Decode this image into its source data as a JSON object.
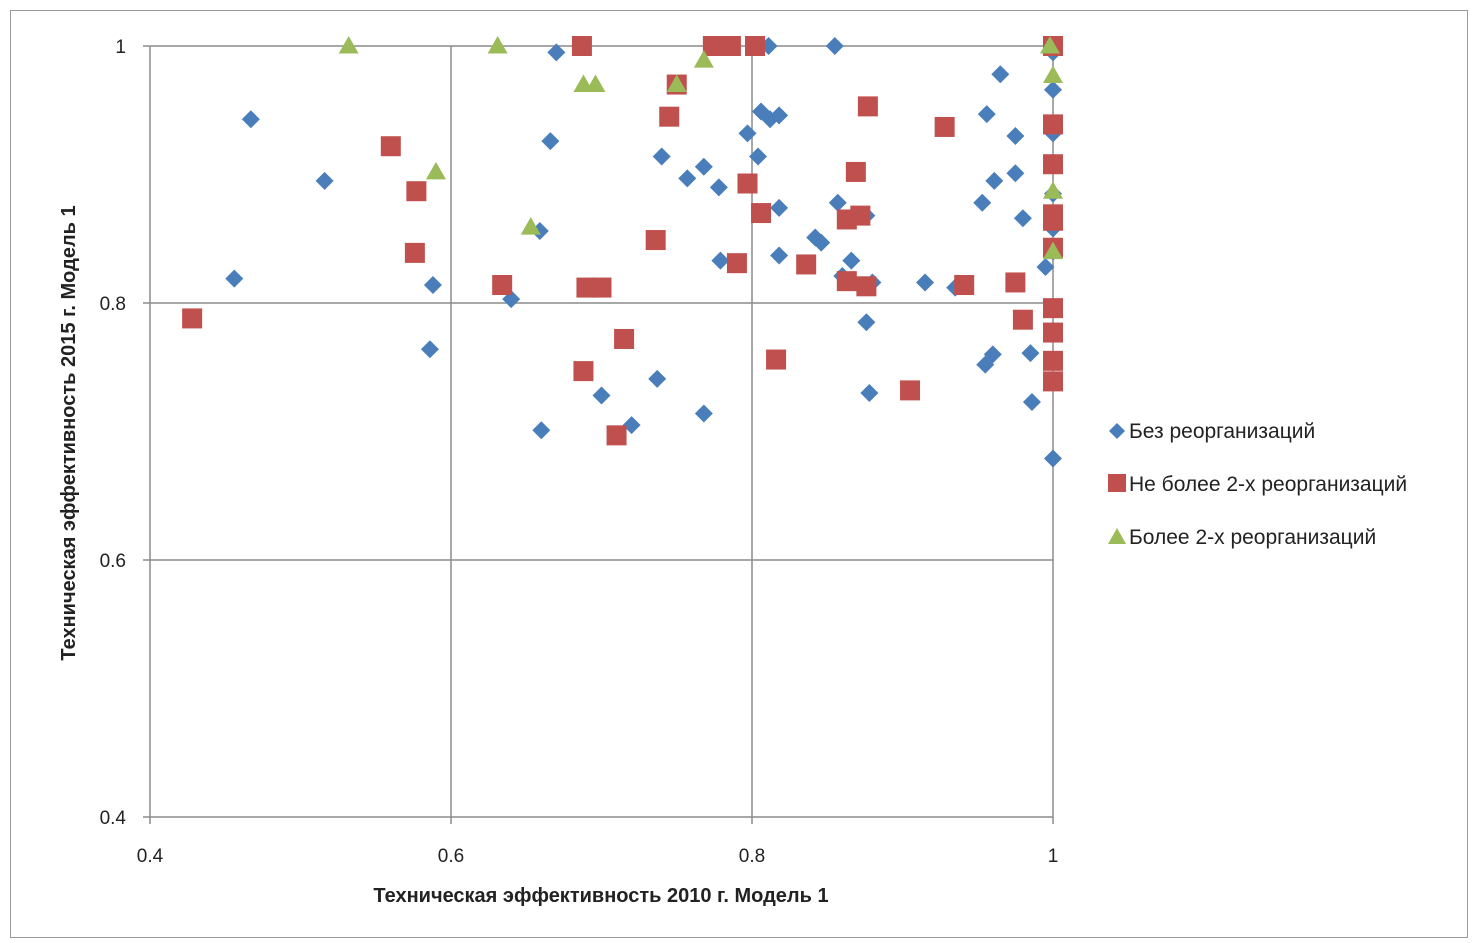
{
  "chart_data": {
    "type": "scatter",
    "xlabel": "Техническая эффективность 2010 г. Модель 1",
    "ylabel": "Техническая эффективность 2015 г. Модель 1",
    "xlim": [
      0.4,
      1.0
    ],
    "ylim": [
      0.4,
      1.0
    ],
    "x_ticks": [
      "0.4",
      "0.6",
      "0.8",
      "1"
    ],
    "y_ticks": [
      "0.4",
      "0.6",
      "0.8",
      "1"
    ],
    "grid": true,
    "legend_position": "right",
    "series": [
      {
        "name": "Без реорганизаций",
        "marker": "diamond",
        "color": "#4a7ebb",
        "points": [
          [
            0.467,
            0.943
          ],
          [
            0.516,
            0.895
          ],
          [
            0.456,
            0.819
          ],
          [
            0.588,
            0.814
          ],
          [
            0.586,
            0.764
          ],
          [
            0.64,
            0.803
          ],
          [
            0.659,
            0.856
          ],
          [
            0.666,
            0.926
          ],
          [
            0.67,
            0.995
          ],
          [
            0.66,
            0.701
          ],
          [
            0.7,
            0.728
          ],
          [
            0.72,
            0.705
          ],
          [
            0.737,
            0.741
          ],
          [
            0.74,
            0.914
          ],
          [
            0.757,
            0.897
          ],
          [
            0.768,
            0.906
          ],
          [
            0.768,
            0.714
          ],
          [
            0.778,
            0.89
          ],
          [
            0.779,
            0.833
          ],
          [
            0.797,
            0.932
          ],
          [
            0.804,
            0.914
          ],
          [
            0.806,
            0.949
          ],
          [
            0.812,
            0.943
          ],
          [
            0.818,
            0.946
          ],
          [
            0.811,
            1.0
          ],
          [
            0.818,
            0.874
          ],
          [
            0.818,
            0.837
          ],
          [
            0.842,
            0.851
          ],
          [
            0.846,
            0.847
          ],
          [
            0.855,
            1.0
          ],
          [
            0.857,
            0.878
          ],
          [
            0.86,
            0.821
          ],
          [
            0.866,
            0.833
          ],
          [
            0.876,
            0.868
          ],
          [
            0.876,
            0.785
          ],
          [
            0.878,
            0.73
          ],
          [
            0.88,
            0.816
          ],
          [
            0.915,
            0.816
          ],
          [
            0.935,
            0.812
          ],
          [
            0.953,
            0.878
          ],
          [
            0.956,
            0.947
          ],
          [
            0.961,
            0.895
          ],
          [
            0.965,
            0.978
          ],
          [
            0.975,
            0.93
          ],
          [
            0.975,
            0.901
          ],
          [
            0.98,
            0.866
          ],
          [
            0.955,
            0.752
          ],
          [
            0.96,
            0.76
          ],
          [
            0.985,
            0.761
          ],
          [
            0.986,
            0.723
          ],
          [
            0.995,
            0.828
          ],
          [
            1.0,
            0.995
          ],
          [
            1.0,
            0.966
          ],
          [
            1.0,
            0.932
          ],
          [
            1.0,
            0.885
          ],
          [
            1.0,
            0.858
          ],
          [
            1.0,
            0.84
          ],
          [
            1.0,
            0.679
          ]
        ]
      },
      {
        "name": "Не более 2-х реорганизаций",
        "marker": "square",
        "color": "#c0504d",
        "points": [
          [
            0.428,
            0.788
          ],
          [
            0.56,
            0.922
          ],
          [
            0.577,
            0.887
          ],
          [
            0.576,
            0.839
          ],
          [
            0.634,
            0.814
          ],
          [
            0.687,
            1.0
          ],
          [
            0.69,
            0.812
          ],
          [
            0.7,
            0.812
          ],
          [
            0.688,
            0.747
          ],
          [
            0.715,
            0.772
          ],
          [
            0.71,
            0.697
          ],
          [
            0.736,
            0.849
          ],
          [
            0.745,
            0.945
          ],
          [
            0.75,
            0.97
          ],
          [
            0.774,
            1.0
          ],
          [
            0.779,
            1.0
          ],
          [
            0.786,
            1.0
          ],
          [
            0.802,
            1.0
          ],
          [
            0.797,
            0.893
          ],
          [
            0.806,
            0.87
          ],
          [
            0.79,
            0.831
          ],
          [
            0.816,
            0.756
          ],
          [
            0.836,
            0.83
          ],
          [
            0.863,
            0.817
          ],
          [
            0.863,
            0.865
          ],
          [
            0.869,
            0.902
          ],
          [
            0.872,
            0.868
          ],
          [
            0.877,
            0.953
          ],
          [
            0.876,
            0.813
          ],
          [
            0.905,
            0.732
          ],
          [
            0.928,
            0.937
          ],
          [
            0.941,
            0.814
          ],
          [
            0.975,
            0.816
          ],
          [
            0.98,
            0.787
          ],
          [
            1.0,
            1.0
          ],
          [
            1.0,
            0.939
          ],
          [
            1.0,
            0.908
          ],
          [
            1.0,
            0.869
          ],
          [
            1.0,
            0.864
          ],
          [
            1.0,
            0.843
          ],
          [
            1.0,
            0.796
          ],
          [
            1.0,
            0.777
          ],
          [
            1.0,
            0.755
          ],
          [
            1.0,
            0.739
          ]
        ]
      },
      {
        "name": "Более 2-х реорганизаций",
        "marker": "triangle",
        "color": "#9bbb59",
        "points": [
          [
            0.532,
            1.0
          ],
          [
            0.631,
            1.0
          ],
          [
            0.59,
            0.902
          ],
          [
            0.653,
            0.859
          ],
          [
            0.688,
            0.97
          ],
          [
            0.696,
            0.97
          ],
          [
            0.75,
            0.97
          ],
          [
            0.768,
            0.989
          ],
          [
            0.998,
            1.0
          ],
          [
            1.0,
            0.977
          ],
          [
            1.0,
            0.887
          ],
          [
            1.0,
            0.84
          ]
        ]
      }
    ]
  }
}
